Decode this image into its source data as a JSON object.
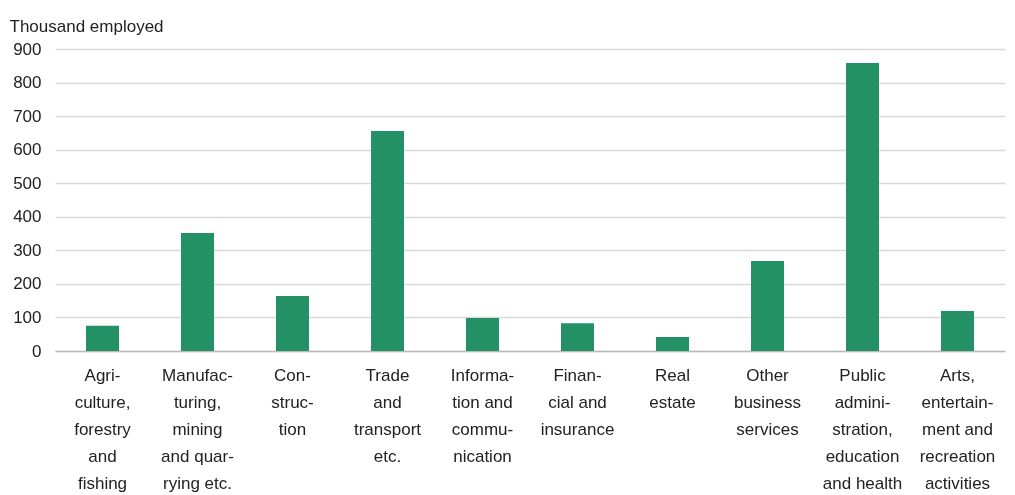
{
  "chart_data": {
    "type": "bar",
    "ylabel": "Thousand employed",
    "categories": [
      "Agri-\nculture,\nforestry\nand\nfishing",
      "Manufac-\nturing,\nmining\nand quar-\nrying etc.",
      "Con-\nstruc-\ntion",
      "Trade\nand\ntransport\netc.",
      "Informa-\ntion and\ncommu-\nnication",
      "Finan-\ncial and\ninsurance",
      "Real\nestate",
      "Other\nbusiness\nservices",
      "Public\nadmini-\nstration,\neducation\nand health",
      "Arts,\nentertain-\nment and\nrecreation\nactivities"
    ],
    "values": [
      75,
      352,
      164,
      656,
      98,
      83,
      42,
      268,
      858,
      119
    ],
    "color": "#239065",
    "ylim": [
      0,
      900
    ],
    "yticks": [
      0,
      100,
      200,
      300,
      400,
      500,
      600,
      700,
      800,
      900
    ],
    "grid": "y"
  }
}
